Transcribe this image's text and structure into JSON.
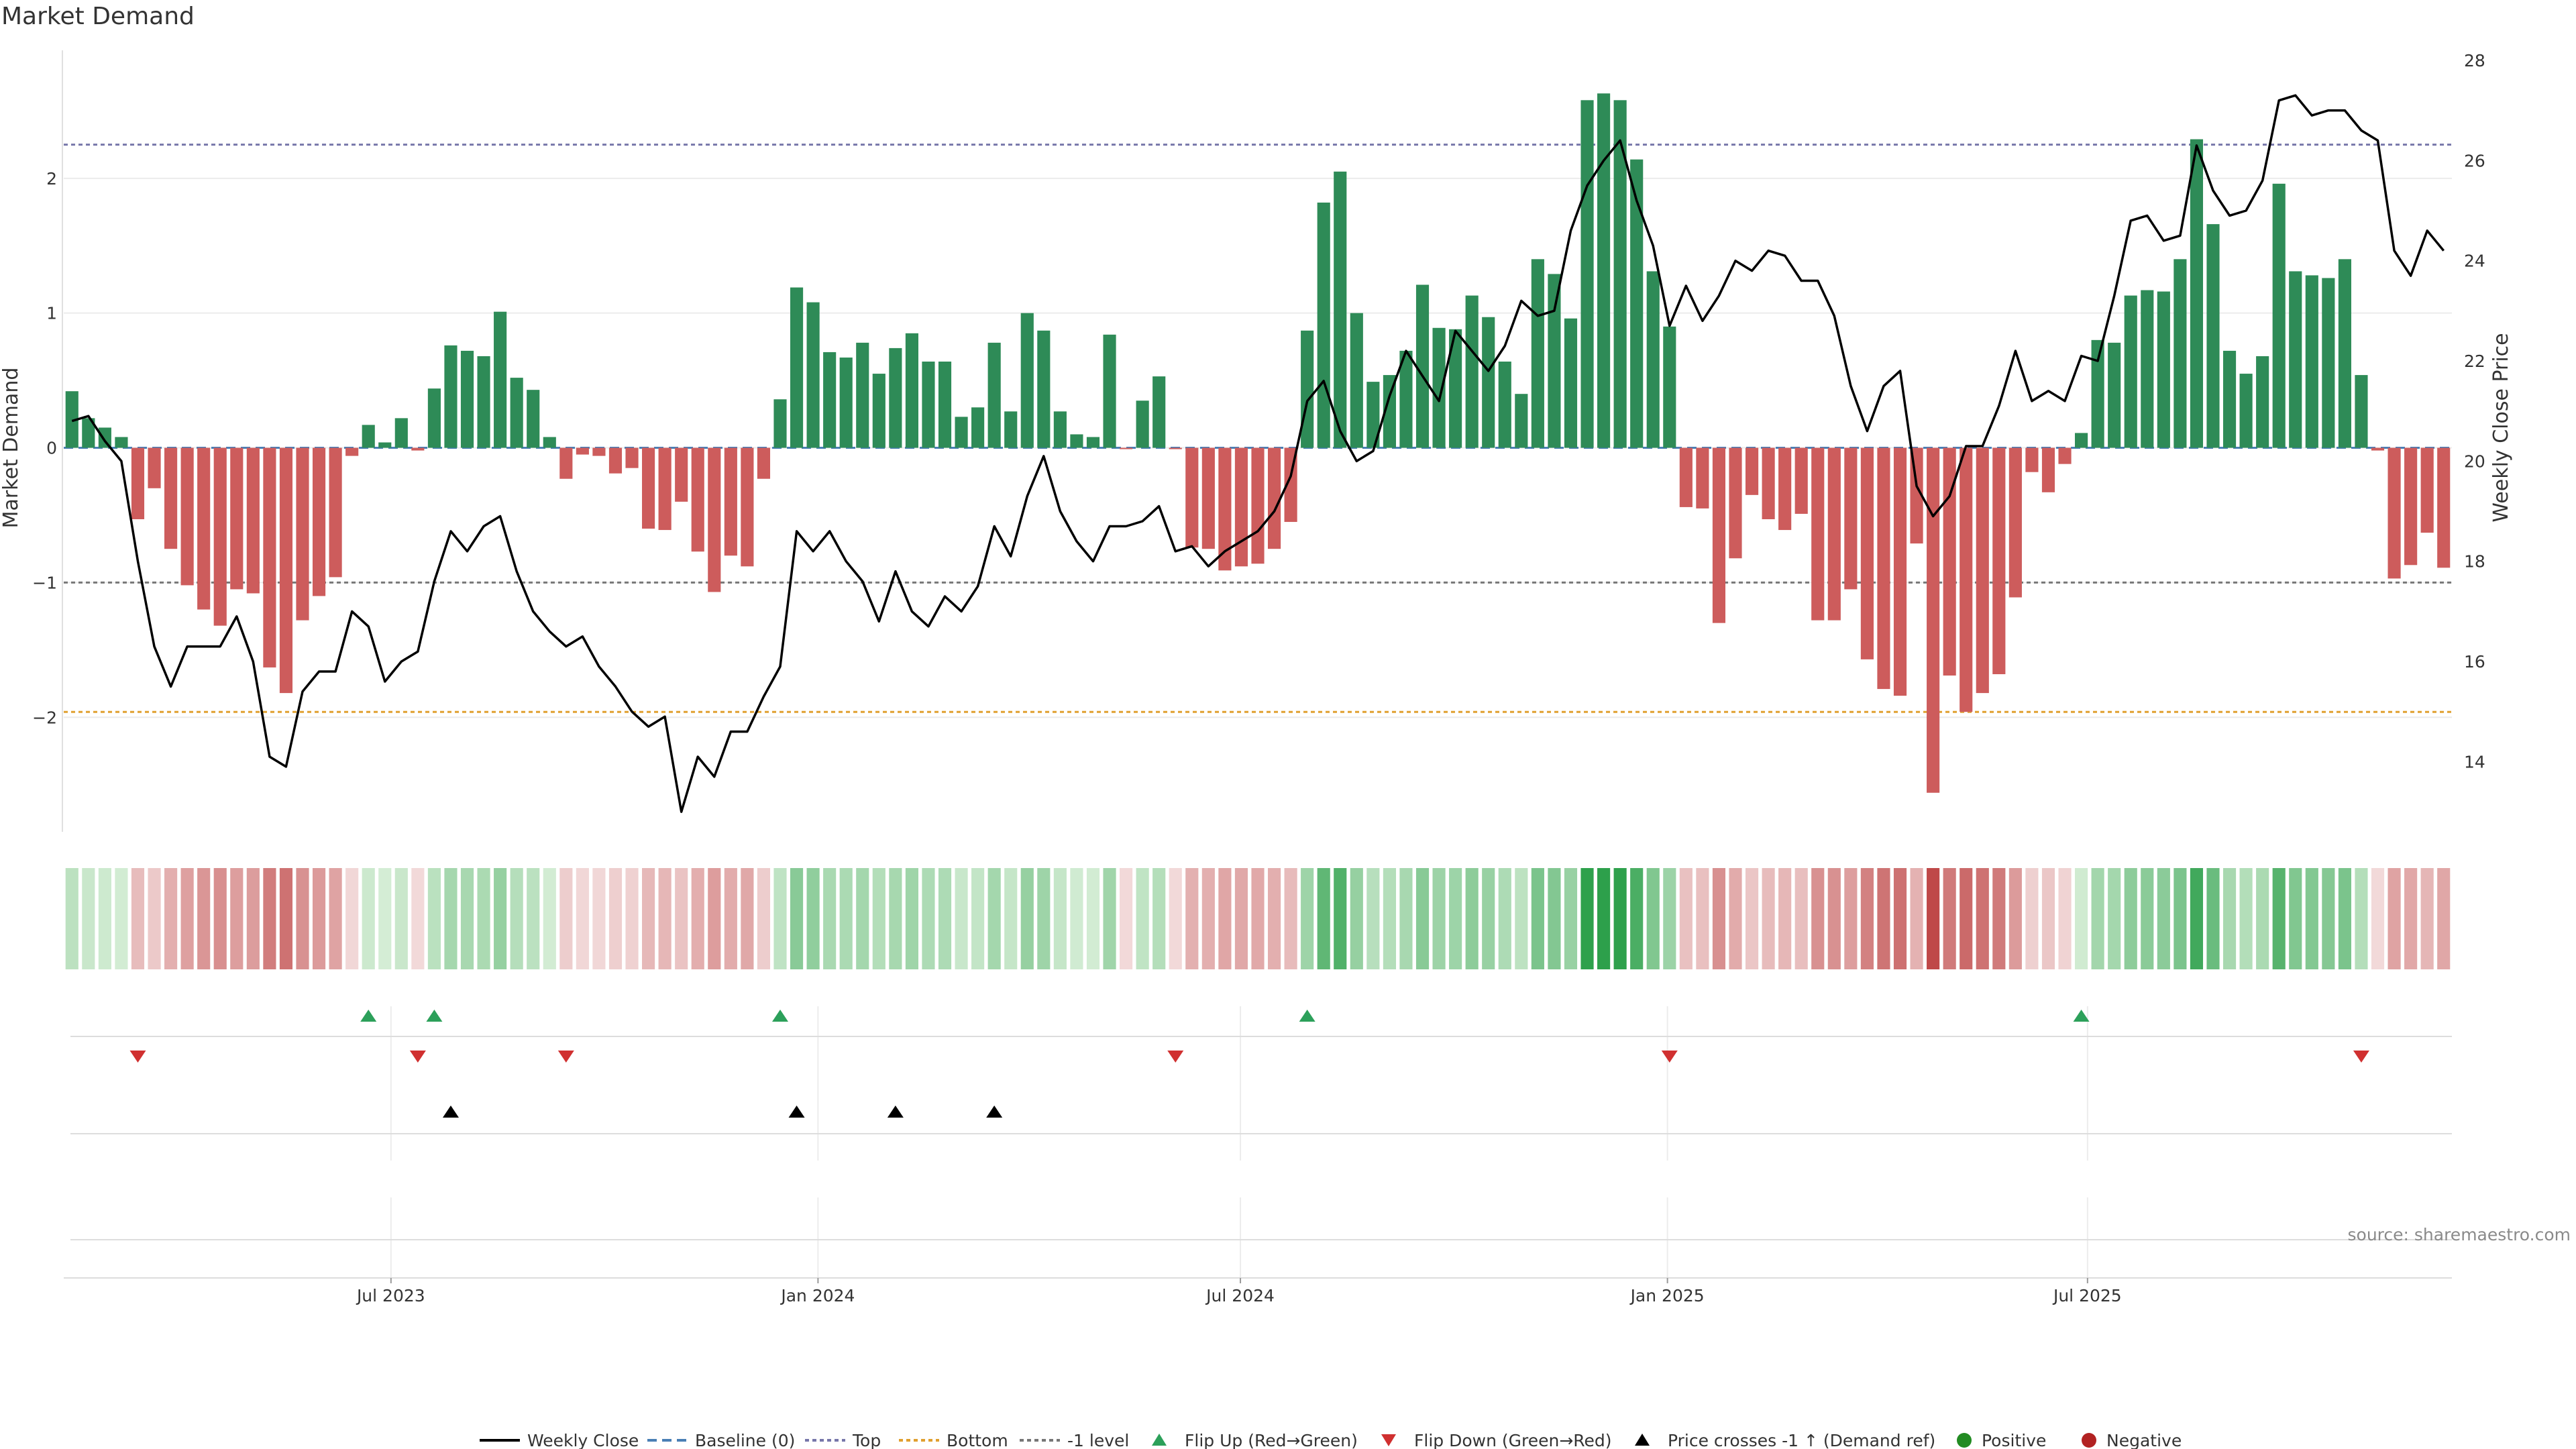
{
  "title": "Market Demand",
  "source": "source: sharemaestro.com",
  "colors": {
    "positive": "#2e8b57",
    "negative": "#cd5c5c",
    "price_line": "#000000",
    "top_line": "#7777aa",
    "bottom_line": "#e0a030",
    "minus1_line": "#777777",
    "flip_up": "#2ca05a",
    "flip_down": "#d03030",
    "price_cross": "#000000",
    "legend_positive": "#228b22",
    "legend_negative": "#b22222"
  },
  "chart_data": {
    "type": "bar",
    "xlabel": "",
    "ylabel_left": "Market Demand",
    "ylabel_right": "Weekly Close Price",
    "ylim_left": [
      -2.85,
      2.95
    ],
    "yticks_left": [
      2,
      1,
      0,
      -1,
      -2
    ],
    "ytick_labels_left": [
      "2",
      "1",
      "0",
      "−1",
      "−2"
    ],
    "ylim_right": [
      12.6,
      28.2
    ],
    "yticks_right": [
      28,
      26,
      24,
      22,
      20,
      18,
      16,
      14
    ],
    "ytick_labels_right": [
      "28",
      "26",
      "24",
      "22",
      "20",
      "18",
      "16",
      "14"
    ],
    "x_start": "2023-02-10",
    "x_end": "2025-12-05",
    "x_ticks": [
      {
        "date": "2023-07-01",
        "label": "Jul 2023"
      },
      {
        "date": "2024-01-01",
        "label": "Jan 2024"
      },
      {
        "date": "2024-07-01",
        "label": "Jul 2024"
      },
      {
        "date": "2025-01-01",
        "label": "Jan 2025"
      },
      {
        "date": "2025-07-01",
        "label": "Jul 2025"
      }
    ],
    "levels": {
      "top": 2.25,
      "bottom": -1.96,
      "minus1": -1.0,
      "baseline": 0
    },
    "demand": [
      0.42,
      0.22,
      0.15,
      0.08,
      -0.53,
      -0.3,
      -0.75,
      -1.02,
      -1.2,
      -1.32,
      -1.05,
      -1.08,
      -1.63,
      -1.82,
      -1.28,
      -1.1,
      -0.96,
      -0.06,
      0.17,
      0.04,
      0.22,
      -0.02,
      0.44,
      0.76,
      0.72,
      0.68,
      1.01,
      0.52,
      0.43,
      0.08,
      -0.23,
      -0.05,
      -0.06,
      -0.19,
      -0.15,
      -0.6,
      -0.61,
      -0.4,
      -0.77,
      -1.07,
      -0.8,
      -0.88,
      -0.23,
      0.36,
      1.19,
      1.08,
      0.71,
      0.67,
      0.78,
      0.55,
      0.74,
      0.85,
      0.64,
      0.64,
      0.23,
      0.3,
      0.78,
      0.27,
      1.0,
      0.87,
      0.27,
      0.1,
      0.08,
      0.84,
      -0.01,
      0.35,
      0.53,
      -0.01,
      -0.74,
      -0.75,
      -0.91,
      -0.88,
      -0.86,
      -0.75,
      -0.55,
      0.87,
      1.82,
      2.05,
      1.0,
      0.49,
      0.54,
      0.72,
      1.21,
      0.89,
      0.88,
      1.13,
      0.97,
      0.64,
      0.4,
      1.4,
      1.29,
      0.96,
      2.58,
      2.63,
      2.58,
      2.14,
      1.31,
      0.9,
      -0.44,
      -0.45,
      -1.3,
      -0.82,
      -0.35,
      -0.53,
      -0.61,
      -0.49,
      -1.28,
      -1.28,
      -1.05,
      -1.57,
      -1.79,
      -1.84,
      -0.71,
      -2.56,
      -1.69,
      -1.96,
      -1.82,
      -1.68,
      -1.11,
      -0.18,
      -0.33,
      -0.12,
      0.11,
      0.8,
      0.78,
      1.13,
      1.17,
      1.16,
      1.4,
      2.29,
      1.66,
      0.72,
      0.55,
      0.68,
      1.96,
      1.31,
      1.28,
      1.26,
      1.4,
      0.54,
      -0.02,
      -0.97,
      -0.87,
      -0.63,
      -0.89
    ],
    "price": [
      20.8,
      20.9,
      20.4,
      20.0,
      18.0,
      16.3,
      15.5,
      16.3,
      16.3,
      16.3,
      16.9,
      16.0,
      14.1,
      13.9,
      15.4,
      15.8,
      15.8,
      17.0,
      16.7,
      15.6,
      16.0,
      16.2,
      17.6,
      18.6,
      18.2,
      18.7,
      18.9,
      17.8,
      17.0,
      16.6,
      16.3,
      16.5,
      15.9,
      15.5,
      15.0,
      14.7,
      14.9,
      13.0,
      14.1,
      13.7,
      14.6,
      14.6,
      15.3,
      15.9,
      18.6,
      18.2,
      18.6,
      18.0,
      17.6,
      16.8,
      17.8,
      17.0,
      16.7,
      17.3,
      17.0,
      17.5,
      18.7,
      18.1,
      19.3,
      20.1,
      19.0,
      18.4,
      18.0,
      18.7,
      18.7,
      18.8,
      19.1,
      18.2,
      18.3,
      17.9,
      18.2,
      18.4,
      18.6,
      19.0,
      19.7,
      21.2,
      21.6,
      20.6,
      20.0,
      20.2,
      21.3,
      22.2,
      21.7,
      21.2,
      22.6,
      22.2,
      21.8,
      22.3,
      23.2,
      22.9,
      23.0,
      24.6,
      25.5,
      26.0,
      26.4,
      25.2,
      24.3,
      22.7,
      23.5,
      22.8,
      23.3,
      24.0,
      23.8,
      24.2,
      24.1,
      23.6,
      23.6,
      22.9,
      21.5,
      20.6,
      21.5,
      21.8,
      19.5,
      18.9,
      19.3,
      20.3,
      20.3,
      21.1,
      22.2,
      21.2,
      21.4,
      21.2,
      22.1,
      22.0,
      23.3,
      24.8,
      24.9,
      24.4,
      24.5,
      26.3,
      25.4,
      24.9,
      25.0,
      25.6,
      27.2,
      27.3,
      26.9,
      27.0,
      27.0,
      26.6,
      26.4,
      24.2,
      23.7,
      24.6,
      24.2
    ],
    "flip_up": [
      18,
      22,
      43,
      75,
      122
    ],
    "flip_down": [
      4,
      21,
      30,
      67,
      97,
      139
    ],
    "price_cross": [
      23,
      44,
      50,
      56
    ],
    "legend": [
      "Weekly Close",
      "Baseline (0)",
      "Top",
      "Bottom",
      "-1 level",
      "Flip Up (Red→Green)",
      "Flip Down (Green→Red)",
      "Price crosses -1 ↑ (Demand ref)",
      "Positive",
      "Negative"
    ]
  }
}
